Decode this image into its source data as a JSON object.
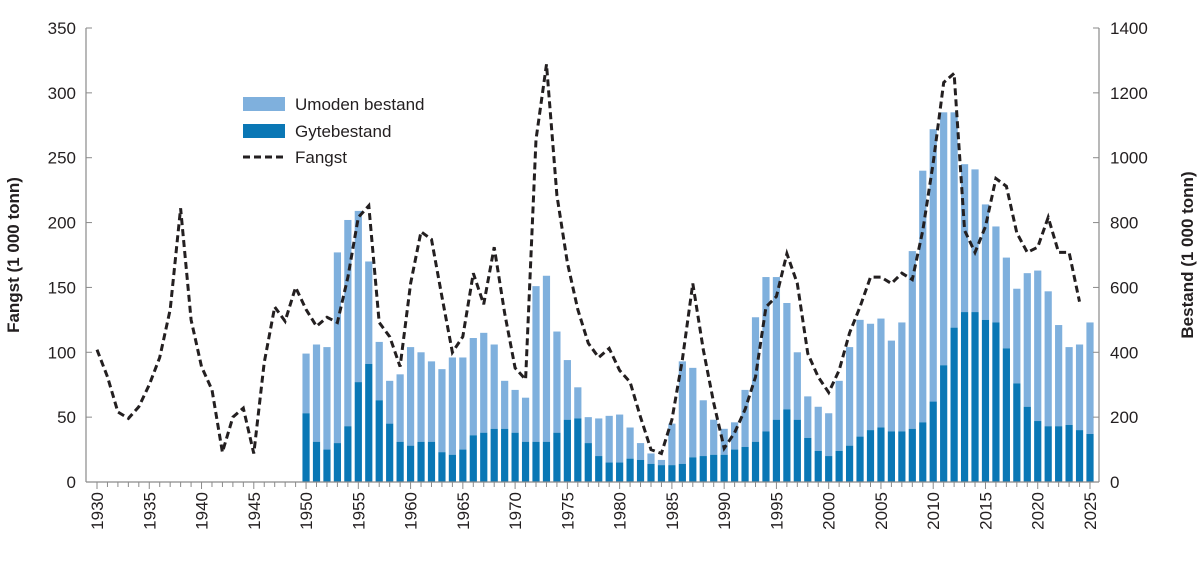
{
  "chart_data": {
    "type": "bar+line",
    "xlabel": "",
    "ylabel_left": "Fangst  (1 000 tonn)",
    "ylabel_right": "Bestand (1 000 tonn)",
    "ylim_left": [
      0,
      350
    ],
    "ylim_right": [
      0,
      1400
    ],
    "yticks_left": [
      0,
      50,
      100,
      150,
      200,
      250,
      300,
      350
    ],
    "yticks_right": [
      0,
      200,
      400,
      600,
      800,
      1000,
      1200,
      1400
    ],
    "xlim": [
      1930,
      2025
    ],
    "xtick_labels": [
      "1930",
      "1935",
      "1940",
      "1945",
      "1950",
      "1955",
      "1960",
      "1965",
      "1970",
      "1975",
      "1980",
      "1985",
      "1990",
      "1995",
      "2000",
      "2005",
      "2010",
      "2015",
      "2020",
      "2025"
    ],
    "grid": false,
    "legend_position": "top-left",
    "colors": {
      "umoden": "#7fb0dd",
      "gyte": "#0a77b5",
      "fangst": "#231f20"
    },
    "legend": [
      {
        "key": "umoden",
        "label": "Umoden bestand",
        "style": "bar"
      },
      {
        "key": "gyte",
        "label": "Gytebestand",
        "style": "bar"
      },
      {
        "key": "fangst",
        "label": "Fangst",
        "style": "dashed-line"
      }
    ],
    "bar_years_start": 1950,
    "gytebestand": [
      212,
      124,
      100,
      120,
      172,
      308,
      364,
      252,
      180,
      124,
      112,
      124,
      124,
      92,
      84,
      100,
      144,
      152,
      164,
      164,
      152,
      124,
      124,
      124,
      152,
      192,
      196,
      120,
      80,
      60,
      60,
      72,
      68,
      56,
      52,
      52,
      56,
      76,
      80,
      84,
      84,
      100,
      108,
      124,
      156,
      192,
      224,
      192,
      136,
      96,
      80,
      96,
      112,
      140,
      160,
      168,
      156,
      156,
      164,
      184,
      248,
      360,
      476,
      524,
      524,
      500,
      492,
      412,
      304,
      232,
      188,
      172,
      172,
      176,
      160,
      148
    ],
    "umoden_bestand": [
      184,
      300,
      316,
      588,
      636,
      528,
      316,
      180,
      132,
      208,
      304,
      276,
      248,
      256,
      300,
      284,
      300,
      308,
      260,
      148,
      132,
      136,
      480,
      512,
      312,
      184,
      96,
      80,
      116,
      144,
      148,
      96,
      52,
      32,
      16,
      128,
      316,
      276,
      172,
      108,
      80,
      84,
      176,
      384,
      476,
      440,
      328,
      208,
      128,
      136,
      132,
      216,
      304,
      360,
      328,
      336,
      280,
      336,
      548,
      776,
      840,
      780,
      664,
      456,
      440,
      356,
      296,
      280,
      292,
      412,
      464,
      416,
      312,
      240,
      264,
      344
    ],
    "fangst_years_start": 1930,
    "fangst": [
      102,
      81,
      54,
      49,
      58,
      75,
      96,
      133,
      211,
      125,
      89,
      71,
      23,
      50,
      57,
      22,
      92,
      135,
      124,
      150,
      133,
      120,
      127,
      123,
      158,
      204,
      213,
      123,
      112,
      89,
      153,
      193,
      187,
      143,
      100,
      112,
      161,
      137,
      181,
      130,
      88,
      79,
      264,
      322,
      221,
      169,
      133,
      107,
      96,
      103,
      86,
      77,
      50,
      25,
      22,
      48,
      94,
      153,
      102,
      61,
      26,
      38,
      56,
      81,
      135,
      143,
      176,
      153,
      99,
      81,
      69,
      86,
      115,
      135,
      158,
      158,
      153,
      161,
      156,
      194,
      246,
      308,
      315,
      194,
      177,
      197,
      234,
      228,
      192,
      177,
      181,
      204,
      177,
      177,
      139
    ]
  }
}
